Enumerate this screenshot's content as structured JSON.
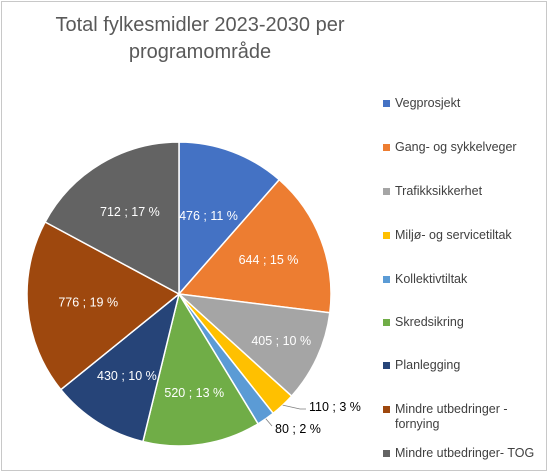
{
  "title_line1": "Total fylkesmidler 2023-2030 per",
  "title_line2": "programområde",
  "chart_data": {
    "type": "pie",
    "title": "Total fylkesmidler 2023-2030 per programområde",
    "legend_placement": "right",
    "slices": [
      {
        "name": "Vegprosjekt",
        "value": 476,
        "percent": "11 %",
        "label": "476 ; 11 %",
        "color": "#4472C4"
      },
      {
        "name": "Gang- og sykkelveger",
        "value": 644,
        "percent": "15 %",
        "label": "644 ; 15 %",
        "color": "#ED7D31"
      },
      {
        "name": "Trafikksikkerhet",
        "value": 405,
        "percent": "10 %",
        "label": "405 ; 10 %",
        "color": "#A5A5A5"
      },
      {
        "name": "Miljø- og servicetiltak",
        "value": 110,
        "percent": "3 %",
        "label": "110 ; 3 %",
        "color": "#FFC000"
      },
      {
        "name": "Kollektivtiltak",
        "value": 80,
        "percent": "2 %",
        "label": "80 ; 2 %",
        "color": "#5B9BD5"
      },
      {
        "name": "Skredsikring",
        "value": 520,
        "percent": "13 %",
        "label": "520 ; 13 %",
        "color": "#70AD47"
      },
      {
        "name": "Planlegging",
        "value": 430,
        "percent": "10 %",
        "label": "430 ; 10 %",
        "color": "#264478"
      },
      {
        "name": "Mindre utbedringer - fornying",
        "value": 776,
        "percent": "19 %",
        "label": "776 ; 19 %",
        "color": "#9E480E"
      },
      {
        "name": "Mindre utbedringer- TOG",
        "value": 712,
        "percent": "17 %",
        "label": "712 ; 17 %",
        "color": "#636363"
      }
    ]
  }
}
